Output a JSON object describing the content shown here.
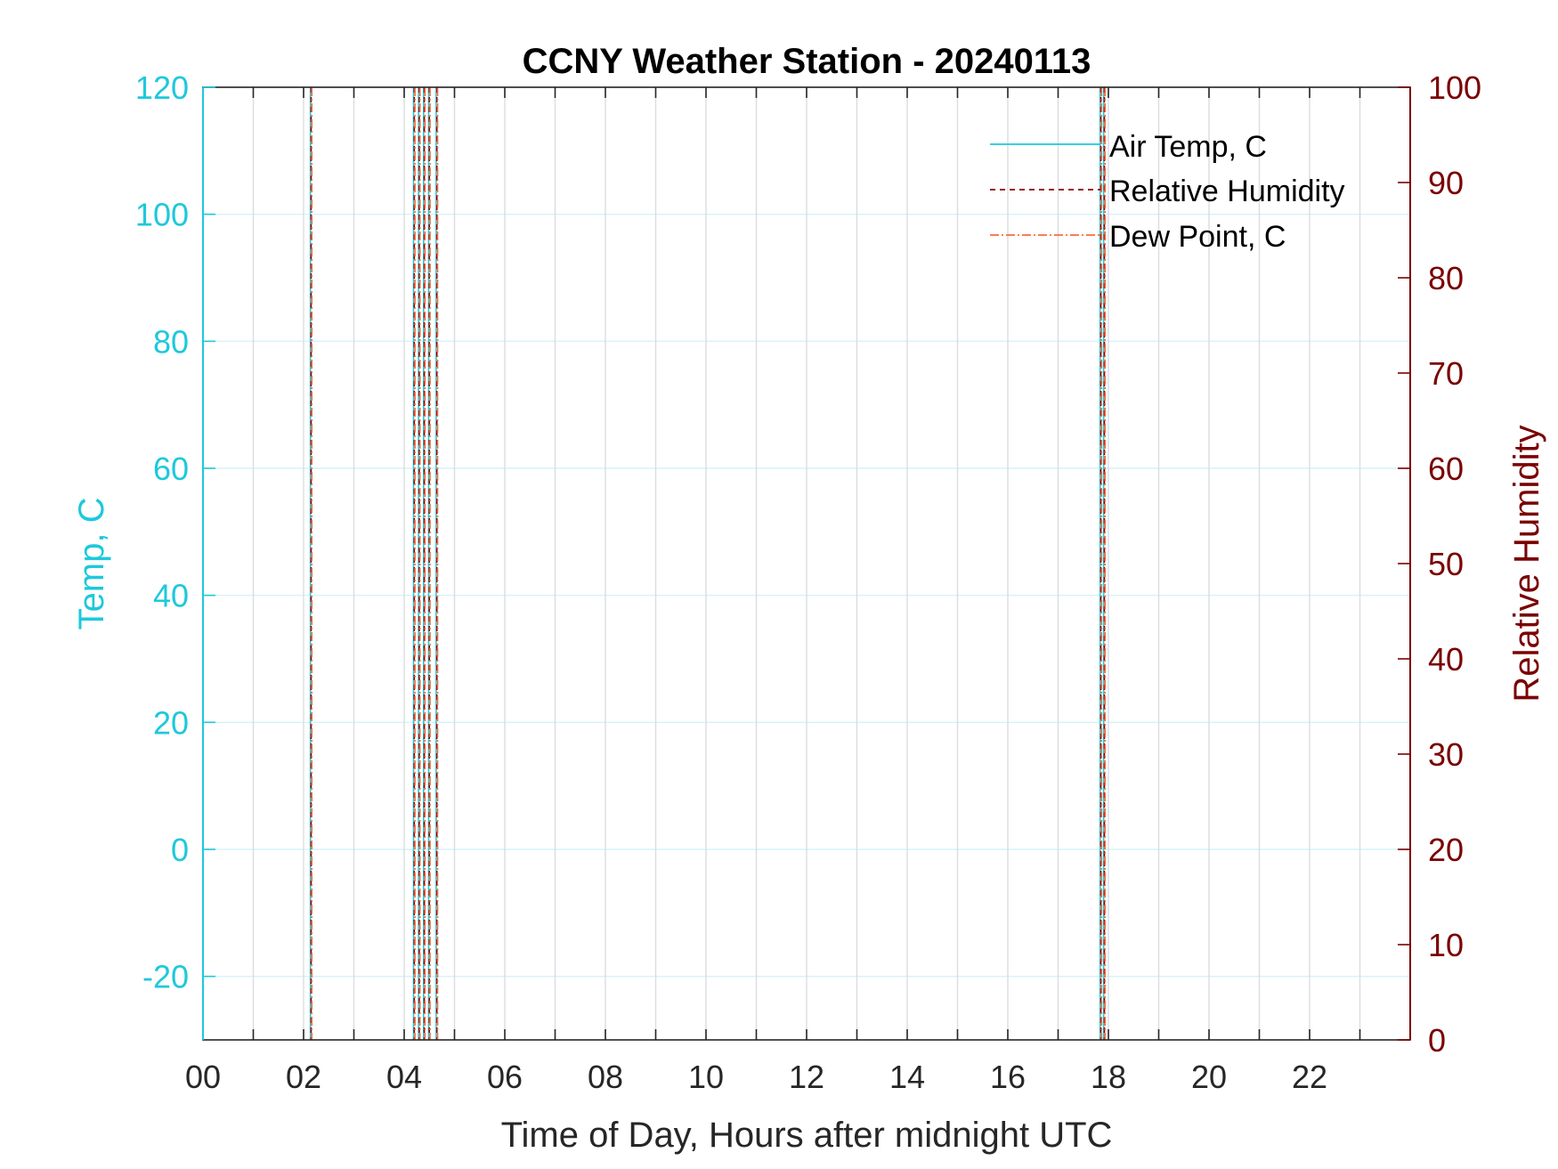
{
  "chart_data": {
    "type": "line",
    "title": "CCNY Weather Station - 20240113",
    "xlabel": "Time of Day, Hours after midnight UTC",
    "ylabel_left": "Temp, C",
    "ylabel_right": "Relative Humidity",
    "xlim": [
      0,
      24
    ],
    "ylim_left": [
      -30,
      120
    ],
    "ylim_right": [
      0,
      100
    ],
    "x_ticks": [
      0,
      2,
      4,
      6,
      8,
      10,
      12,
      14,
      16,
      18,
      20,
      22
    ],
    "x_tick_labels": [
      "00",
      "02",
      "04",
      "06",
      "08",
      "10",
      "12",
      "14",
      "16",
      "18",
      "20",
      "22"
    ],
    "x_minor_grid": [
      1,
      3,
      5,
      7,
      9,
      11,
      13,
      15,
      17,
      19,
      21,
      23
    ],
    "y_left_ticks": [
      -20,
      0,
      20,
      40,
      60,
      80,
      100,
      120
    ],
    "y_left_tick_labels": [
      "-20",
      "0",
      "20",
      "40",
      "60",
      "80",
      "100",
      "120"
    ],
    "y_right_ticks": [
      0,
      10,
      20,
      30,
      40,
      50,
      60,
      70,
      80,
      90,
      100
    ],
    "y_right_tick_labels": [
      "0",
      "10",
      "20",
      "30",
      "40",
      "50",
      "60",
      "70",
      "80",
      "90",
      "100"
    ],
    "grid": true,
    "legend_position": "top-right",
    "colors": {
      "left_axis": "#1ec8dc",
      "right_axis": "#7a0000",
      "air_temp": "#1ec8dc",
      "humidity": "#8b0000",
      "dew_point": "#ff6a3d",
      "grid_x": "#d9dde2",
      "grid_y": "#d6f3f8"
    },
    "series": [
      {
        "name": "Air Temp, C",
        "style": "solid",
        "axis": "left",
        "spike_x": [
          2.15,
          4.2,
          4.3,
          4.4,
          4.5,
          4.65,
          17.85,
          17.92
        ]
      },
      {
        "name": "Relative Humidity",
        "style": "dashed",
        "axis": "right",
        "spike_x": [
          2.15,
          4.2,
          4.3,
          4.4,
          4.5,
          4.65,
          17.85,
          17.92
        ]
      },
      {
        "name": "Dew Point, C",
        "style": "dash-dot",
        "axis": "left",
        "spike_x": [
          2.15,
          4.2,
          4.3,
          4.4,
          4.5,
          4.65,
          17.85,
          17.92
        ]
      }
    ]
  }
}
